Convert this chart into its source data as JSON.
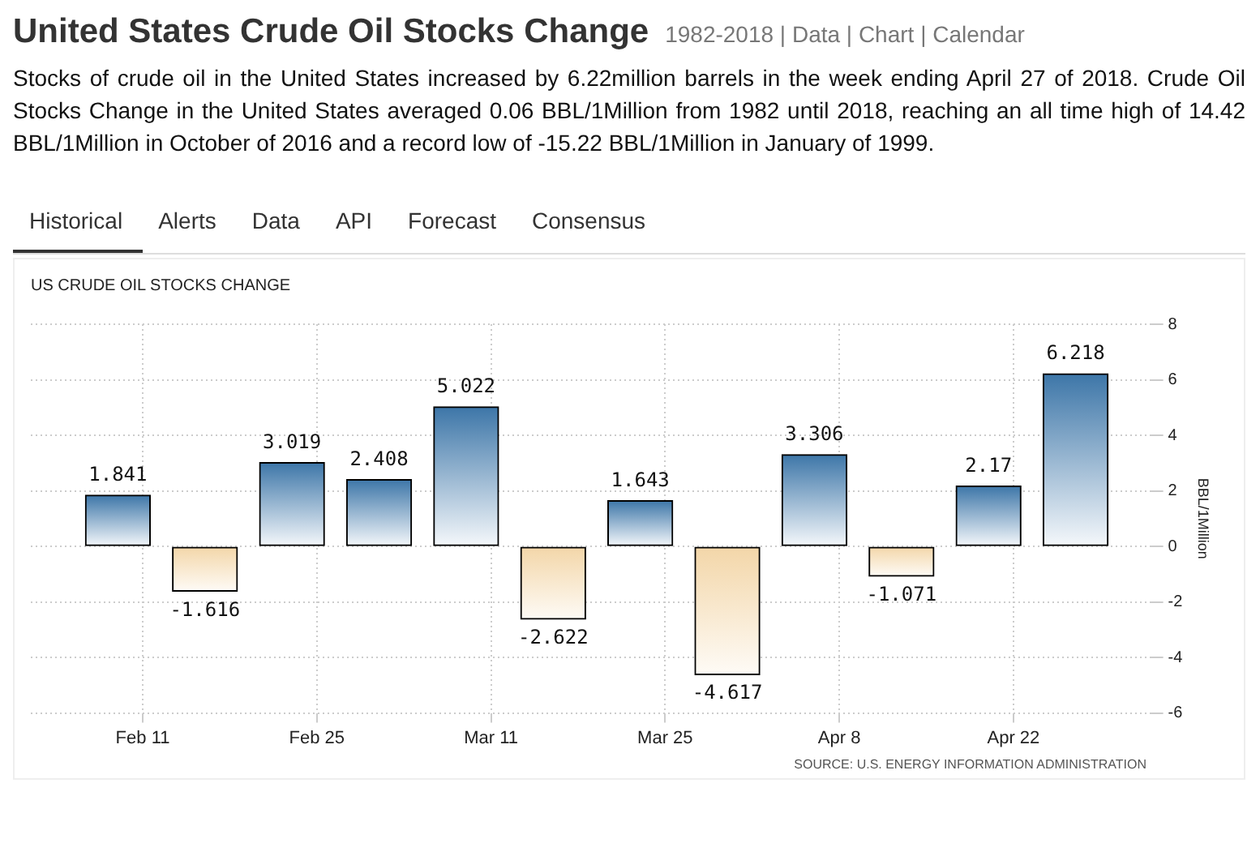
{
  "chart_data": {
    "type": "bar",
    "title": "United States Crude Oil Stocks Change",
    "subtitle": "US CRUDE OIL STOCKS CHANGE",
    "ylabel": "BBL/1Million",
    "annotations": [
      "1982-2018 | Data | Chart | Calendar",
      "Stocks of crude oil in the United States increased by 6.22million barrels in the week ending April 27 of 2018. Crude Oil Stocks Change in the United States averaged 0.06 BBL/1Million from 1982 until 2018, reaching an all time high of 14.42 BBL/1Million in October of 2016 and a record low of -15.22 BBL/1Million in January of 1999.",
      "Historical",
      "Alerts",
      "Data",
      "API",
      "Forecast",
      "Consensus",
      "SOURCE: U.S. ENERGY INFORMATION ADMINISTRATION"
    ],
    "x": [
      "2018-02-09",
      "2018-02-16",
      "2018-02-23",
      "2018-03-02",
      "2018-03-09",
      "2018-03-16",
      "2018-03-23",
      "2018-03-30",
      "2018-04-06",
      "2018-04-13",
      "2018-04-20",
      "2018-04-27"
    ],
    "values": [
      1.841,
      -1.616,
      3.019,
      2.408,
      5.022,
      -2.622,
      1.643,
      -4.617,
      3.306,
      -1.071,
      2.17,
      6.218
    ],
    "colors": [
      "#3d76a8",
      "#f3d6a8",
      "#3d76a8",
      "#3d76a8",
      "#3d76a8",
      "#f3d6a8",
      "#3d76a8",
      "#f3d6a8",
      "#3d76a8",
      "#f3d6a8",
      "#3d76a8",
      "#3d76a8"
    ],
    "xlim": [
      "2018-02-02",
      "2018-05-03"
    ],
    "xticks": [
      {
        "value": "2018-02-11",
        "label": "Feb 11"
      },
      {
        "value": "2018-02-25",
        "label": "Feb 25"
      },
      {
        "value": "2018-03-11",
        "label": "Mar 11"
      },
      {
        "value": "2018-03-25",
        "label": "Mar 25"
      },
      {
        "value": "2018-04-08",
        "label": "Apr 8"
      },
      {
        "value": "2018-04-22",
        "label": "Apr 22"
      }
    ],
    "ylim": [
      -6,
      8
    ],
    "yticks": [
      -6,
      -4,
      -2,
      0,
      2,
      4,
      6,
      8
    ],
    "grid": true,
    "data_labels": true
  }
}
